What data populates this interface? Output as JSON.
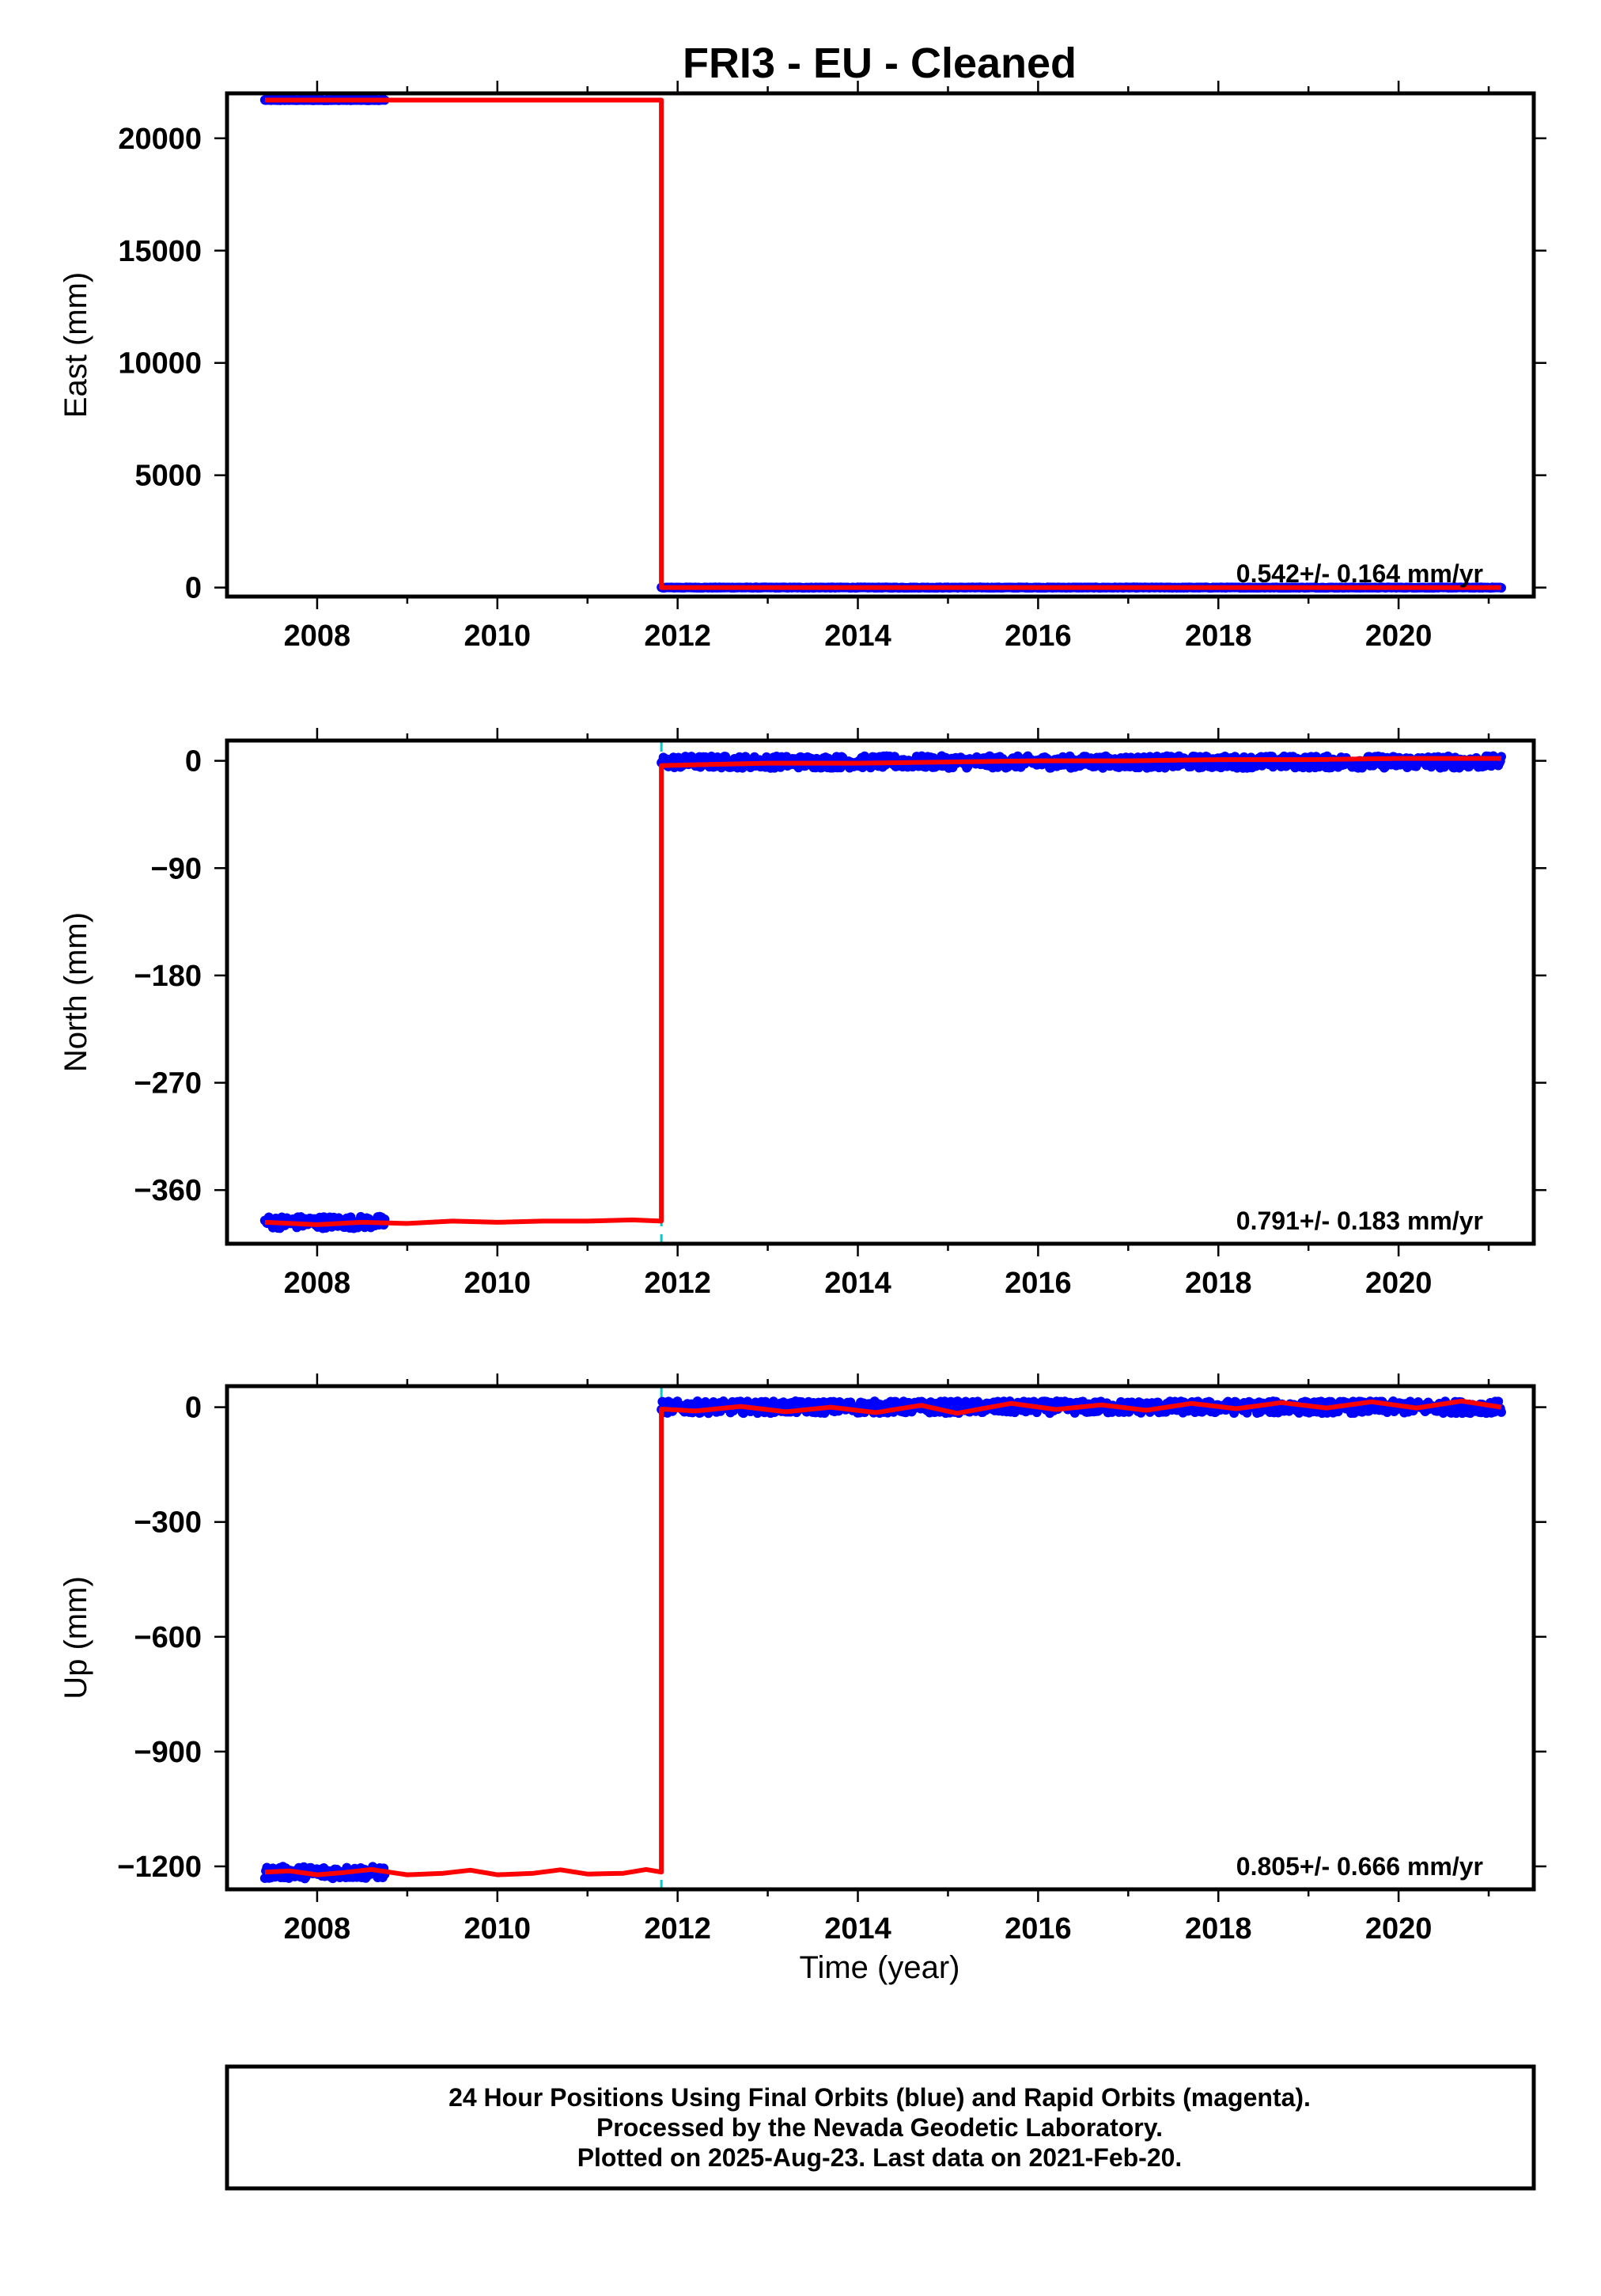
{
  "title": "FRI3  - EU - Cleaned",
  "caption": [
    "24 Hour Positions Using Final Orbits (blue) and Rapid Orbits (magenta).",
    "Processed by the Nevada Geodetic Laboratory.",
    "Plotted on 2025-Aug-23. Last data on 2021-Feb-20."
  ],
  "xlabel": "Time (year)",
  "colors": {
    "final_orbits": "#0000ff",
    "model_fit": "#ff0000",
    "offset_marker": "#00cccc",
    "frame": "#000000"
  },
  "chart_data": [
    {
      "type": "scatter",
      "component": "east",
      "ylabel": "East (mm)",
      "xlim": [
        2007.0,
        2021.5
      ],
      "ylim": [
        -400,
        22000
      ],
      "x_ticks": [
        2008,
        2010,
        2012,
        2014,
        2016,
        2018,
        2020
      ],
      "y_ticks": [
        0,
        5000,
        10000,
        15000,
        20000
      ],
      "annotation": "0.542+/- 0.164 mm/yr",
      "offset_epoch": 2011.82,
      "segments": [
        {
          "x_start": 2007.42,
          "x_end": 2008.75,
          "y": 21700
        },
        {
          "x_start": 2011.82,
          "x_end": 2021.14,
          "y": 0
        }
      ],
      "model": [
        [
          2007.42,
          21700
        ],
        [
          2011.82,
          21700
        ],
        [
          2011.82,
          0
        ],
        [
          2021.14,
          0
        ]
      ]
    },
    {
      "type": "scatter",
      "component": "north",
      "ylabel": "North (mm)",
      "xlim": [
        2007.0,
        2021.5
      ],
      "ylim": [
        -405,
        17
      ],
      "x_ticks": [
        2008,
        2010,
        2012,
        2014,
        2016,
        2018,
        2020
      ],
      "y_ticks": [
        0,
        -90,
        -180,
        -270,
        -360
      ],
      "annotation": "0.791+/- 0.183 mm/yr",
      "offset_epoch": 2011.82,
      "segments": [
        {
          "x_start": 2007.42,
          "x_end": 2008.75,
          "y": -387
        },
        {
          "x_start": 2011.82,
          "x_end": 2021.14,
          "y": -1
        }
      ],
      "model": [
        [
          2007.42,
          -387
        ],
        [
          2008.0,
          -389
        ],
        [
          2008.5,
          -387
        ],
        [
          2009.0,
          -388
        ],
        [
          2009.5,
          -386
        ],
        [
          2010.0,
          -387
        ],
        [
          2010.5,
          -386
        ],
        [
          2011.0,
          -386
        ],
        [
          2011.5,
          -385
        ],
        [
          2011.82,
          -386
        ],
        [
          2011.82,
          -4
        ],
        [
          2013.0,
          -2
        ],
        [
          2014.0,
          -2
        ],
        [
          2015.0,
          -1
        ],
        [
          2016.0,
          0
        ],
        [
          2017.0,
          0
        ],
        [
          2018.0,
          1
        ],
        [
          2019.0,
          1
        ],
        [
          2020.0,
          2
        ],
        [
          2021.14,
          2
        ]
      ]
    },
    {
      "type": "scatter",
      "component": "up",
      "ylabel": "Up (mm)",
      "xlim": [
        2007.0,
        2021.5
      ],
      "ylim": [
        -1260,
        55
      ],
      "x_ticks": [
        2008,
        2010,
        2012,
        2014,
        2016,
        2018,
        2020
      ],
      "y_ticks": [
        0,
        -300,
        -600,
        -900,
        -1200
      ],
      "annotation": "0.805+/- 0.666 mm/yr",
      "offset_epoch": 2011.82,
      "segments": [
        {
          "x_start": 2007.42,
          "x_end": 2008.75,
          "y": -1216
        },
        {
          "x_start": 2011.82,
          "x_end": 2021.14,
          "y": 0
        }
      ],
      "model": [
        [
          2007.42,
          -1215
        ],
        [
          2007.7,
          -1212
        ],
        [
          2008.0,
          -1222
        ],
        [
          2008.3,
          -1216
        ],
        [
          2008.6,
          -1208
        ],
        [
          2009.0,
          -1222
        ],
        [
          2009.4,
          -1218
        ],
        [
          2009.7,
          -1210
        ],
        [
          2010.0,
          -1222
        ],
        [
          2010.4,
          -1218
        ],
        [
          2010.7,
          -1209
        ],
        [
          2011.0,
          -1220
        ],
        [
          2011.4,
          -1218
        ],
        [
          2011.65,
          -1208
        ],
        [
          2011.82,
          -1215
        ],
        [
          2011.82,
          -5
        ],
        [
          2012.2,
          -10
        ],
        [
          2012.7,
          2
        ],
        [
          2013.2,
          -12
        ],
        [
          2013.7,
          0
        ],
        [
          2014.2,
          -14
        ],
        [
          2014.7,
          5
        ],
        [
          2015.1,
          -16
        ],
        [
          2015.7,
          10
        ],
        [
          2016.2,
          -6
        ],
        [
          2016.7,
          6
        ],
        [
          2017.2,
          -8
        ],
        [
          2017.7,
          10
        ],
        [
          2018.2,
          -4
        ],
        [
          2018.7,
          12
        ],
        [
          2019.2,
          -2
        ],
        [
          2019.7,
          14
        ],
        [
          2020.2,
          -2
        ],
        [
          2020.7,
          16
        ],
        [
          2021.14,
          0
        ]
      ]
    }
  ]
}
